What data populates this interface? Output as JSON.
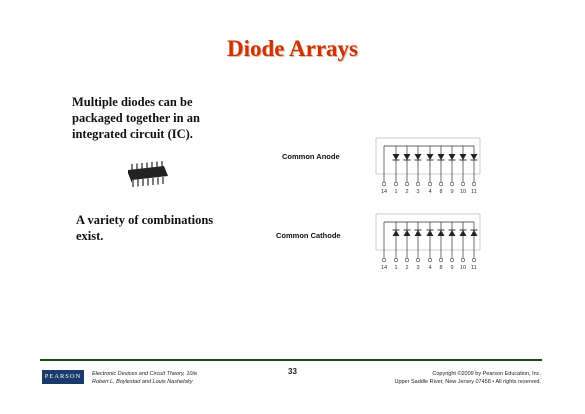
{
  "title": "Diode Arrays",
  "body": {
    "text1": "Multiple diodes can be packaged together in an integrated circuit (IC).",
    "text2": "A variety of combinations exist."
  },
  "diagrams": {
    "anode": {
      "label": "Common Anode",
      "pins": [
        "14",
        "1",
        "2",
        "3",
        "4",
        "8",
        "9",
        "10",
        "11"
      ]
    },
    "cathode": {
      "label": "Common Cathode",
      "pins": [
        "14",
        "1",
        "2",
        "3",
        "4",
        "8",
        "9",
        "10",
        "11"
      ]
    }
  },
  "footer": {
    "publisher_logo": "PEARSON",
    "book_title": "Electronic Devices and Circuit Theory, 10/e",
    "authors": "Robert L. Boylestad and Louis Nashelsky",
    "page_number": "33",
    "copyright": "Copyright ©2009 by Pearson Education, Inc.",
    "rights": "Upper Saddle River, New Jersey 07458 • All rights reserved."
  }
}
